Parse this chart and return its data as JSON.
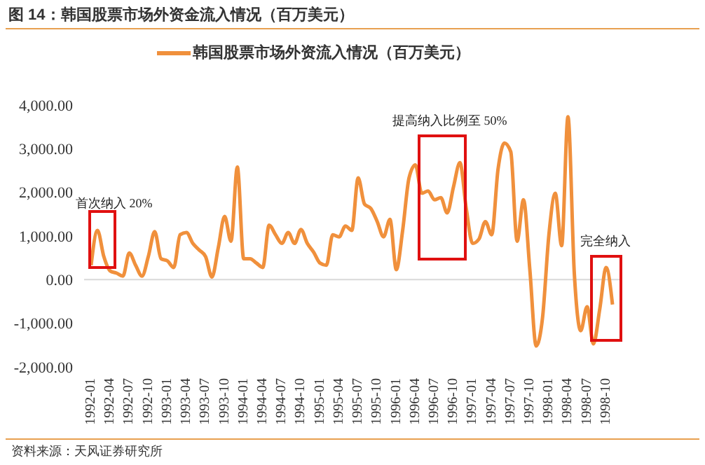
{
  "chart_data": {
    "type": "line",
    "title": "图 14：韩国股票市场外资金流入情况（百万美元）",
    "categories": [
      "1992-01",
      null,
      null,
      "1992-04",
      null,
      null,
      "1992-07",
      null,
      null,
      "1992-10",
      null,
      null,
      "1993-01",
      null,
      null,
      "1993-04",
      null,
      null,
      "1993-07",
      null,
      null,
      "1993-10",
      null,
      null,
      "1994-01",
      null,
      null,
      "1994-04",
      null,
      null,
      "1994-07",
      null,
      null,
      "1994-10",
      null,
      null,
      "1995-01",
      null,
      null,
      "1995-04",
      null,
      null,
      "1995-07",
      null,
      null,
      "1995-10",
      null,
      null,
      "1996-01",
      null,
      null,
      "1996-04",
      null,
      null,
      "1996-07",
      null,
      null,
      "1996-10",
      null,
      null,
      "1997-01",
      null,
      null,
      "1997-04",
      null,
      null,
      "1997-07",
      null,
      null,
      "1997-10",
      null,
      null,
      "1998-01",
      null,
      null,
      "1998-04",
      null,
      null,
      "1998-07",
      null,
      null,
      "1998-10",
      null
    ],
    "series": [
      {
        "name": "韩国股票市场外资流入情况（百万美元）",
        "color": "#f0903c",
        "values": [
          330,
          1130,
          530,
          200,
          150,
          80,
          610,
          330,
          80,
          530,
          1100,
          480,
          430,
          280,
          1030,
          1080,
          830,
          680,
          530,
          60,
          730,
          1450,
          880,
          2580,
          480,
          480,
          380,
          280,
          1250,
          1030,
          830,
          1080,
          830,
          1150,
          830,
          630,
          380,
          330,
          1030,
          980,
          1230,
          1130,
          2330,
          1730,
          1630,
          1330,
          980,
          1380,
          230,
          1130,
          2330,
          2630,
          1980,
          2030,
          1830,
          1880,
          1530,
          2130,
          2680,
          1630,
          830,
          930,
          1330,
          1030,
          2530,
          3130,
          2930,
          880,
          1830,
          230,
          -1520,
          -870,
          1030,
          1980,
          780,
          3730,
          130,
          -1170,
          -620,
          -1470,
          -670,
          280,
          -570
        ]
      }
    ],
    "ylim": [
      -2000,
      4000
    ],
    "yticks": [
      {
        "value": -2000,
        "label": "-2,000.00"
      },
      {
        "value": -1000,
        "label": "-1,000.00"
      },
      {
        "value": 0,
        "label": "0.00"
      },
      {
        "value": 1000,
        "label": "1,000.00"
      },
      {
        "value": 2000,
        "label": "2,000.00"
      },
      {
        "value": 3000,
        "label": "3,000.00"
      },
      {
        "value": 4000,
        "label": "4,000.00"
      }
    ],
    "ref_lines": [
      {
        "axis": "y",
        "value": 0,
        "color": "#d9d9d9"
      }
    ],
    "legend": "top",
    "grid": false,
    "marker": "none",
    "line_style": "solid",
    "annotations": [
      "首次纳入 20%",
      "提高纳入比例至 50%",
      "完全纳入",
      "资料来源：天风证券研究所"
    ]
  }
}
